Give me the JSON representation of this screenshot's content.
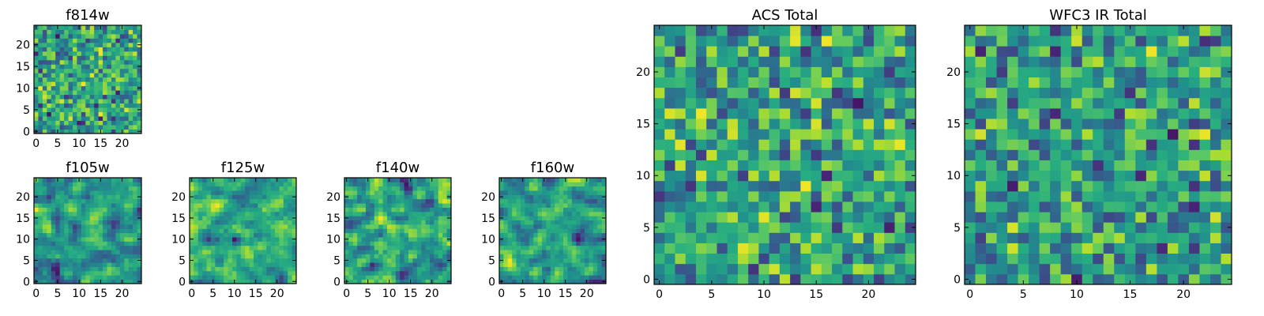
{
  "chart_data": [
    {
      "type": "heatmap",
      "title": "f814w",
      "xlim": [
        0,
        25
      ],
      "ylim": [
        0,
        25
      ],
      "xticks": [
        0,
        5,
        10,
        15,
        20
      ],
      "yticks": [
        0,
        5,
        10,
        15,
        20
      ],
      "grid_size": 25,
      "colormap": "viridis",
      "seed": 11,
      "smooth": 0
    },
    {
      "type": "heatmap",
      "title": "f105w",
      "xlim": [
        0,
        25
      ],
      "ylim": [
        0,
        25
      ],
      "xticks": [
        0,
        5,
        10,
        15,
        20
      ],
      "yticks": [
        0,
        5,
        10,
        15,
        20
      ],
      "grid_size": 25,
      "colormap": "viridis",
      "seed": 23,
      "smooth": 1
    },
    {
      "type": "heatmap",
      "title": "f125w",
      "xlim": [
        0,
        25
      ],
      "ylim": [
        0,
        25
      ],
      "xticks": [
        0,
        5,
        10,
        15,
        20
      ],
      "yticks": [
        0,
        5,
        10,
        15,
        20
      ],
      "grid_size": 25,
      "colormap": "viridis",
      "seed": 37,
      "smooth": 1
    },
    {
      "type": "heatmap",
      "title": "f140w",
      "xlim": [
        0,
        25
      ],
      "ylim": [
        0,
        25
      ],
      "xticks": [
        0,
        5,
        10,
        15,
        20
      ],
      "yticks": [
        0,
        5,
        10,
        15,
        20
      ],
      "grid_size": 25,
      "colormap": "viridis",
      "seed": 41,
      "smooth": 1
    },
    {
      "type": "heatmap",
      "title": "f160w",
      "xlim": [
        0,
        25
      ],
      "ylim": [
        0,
        25
      ],
      "xticks": [
        0,
        5,
        10,
        15,
        20
      ],
      "yticks": [
        0,
        5,
        10,
        15,
        20
      ],
      "grid_size": 25,
      "colormap": "viridis",
      "seed": 53,
      "smooth": 1
    },
    {
      "type": "heatmap",
      "title": "ACS Total",
      "xlim": [
        0,
        25
      ],
      "ylim": [
        0,
        25
      ],
      "xticks": [
        0,
        5,
        10,
        15,
        20
      ],
      "yticks": [
        0,
        5,
        10,
        15,
        20
      ],
      "grid_size": 25,
      "colormap": "viridis",
      "seed": 67,
      "smooth": 0
    },
    {
      "type": "heatmap",
      "title": "WFC3 IR Total",
      "xlim": [
        0,
        25
      ],
      "ylim": [
        0,
        25
      ],
      "xticks": [
        0,
        5,
        10,
        15,
        20
      ],
      "yticks": [
        0,
        5,
        10,
        15,
        20
      ],
      "grid_size": 25,
      "colormap": "viridis",
      "seed": 79,
      "smooth": 0
    }
  ]
}
